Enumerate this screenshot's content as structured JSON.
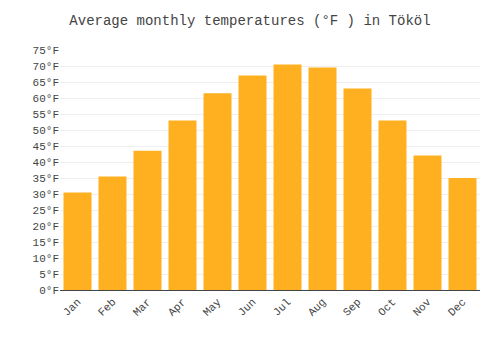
{
  "chart_data": {
    "type": "bar",
    "title": "Average monthly temperatures (°F ) in Tököl",
    "categories": [
      "Jan",
      "Feb",
      "Mar",
      "Apr",
      "May",
      "Jun",
      "Jul",
      "Aug",
      "Sep",
      "Oct",
      "Nov",
      "Dec"
    ],
    "values": [
      30.5,
      35.5,
      43.5,
      53.0,
      61.5,
      67.0,
      70.5,
      69.5,
      63.0,
      53.0,
      42.0,
      35.0
    ],
    "color": "#FFB020",
    "ylim": [
      0,
      75
    ],
    "yticks": [
      {
        "value": 0,
        "label": "0°F"
      },
      {
        "value": 5,
        "label": "5°F"
      },
      {
        "value": 10,
        "label": "10°F"
      },
      {
        "value": 15,
        "label": "15°F"
      },
      {
        "value": 20,
        "label": "20°F"
      },
      {
        "value": 25,
        "label": "25°F"
      },
      {
        "value": 30,
        "label": "30°F"
      },
      {
        "value": 35,
        "label": "35°F"
      },
      {
        "value": 40,
        "label": "40°F"
      },
      {
        "value": 45,
        "label": "45°F"
      },
      {
        "value": 50,
        "label": "50°F"
      },
      {
        "value": 55,
        "label": "55°F"
      },
      {
        "value": 60,
        "label": "60°F"
      },
      {
        "value": 65,
        "label": "65°F"
      },
      {
        "value": 70,
        "label": "70°F"
      },
      {
        "value": 75,
        "label": "75°F"
      }
    ],
    "grid": true
  }
}
